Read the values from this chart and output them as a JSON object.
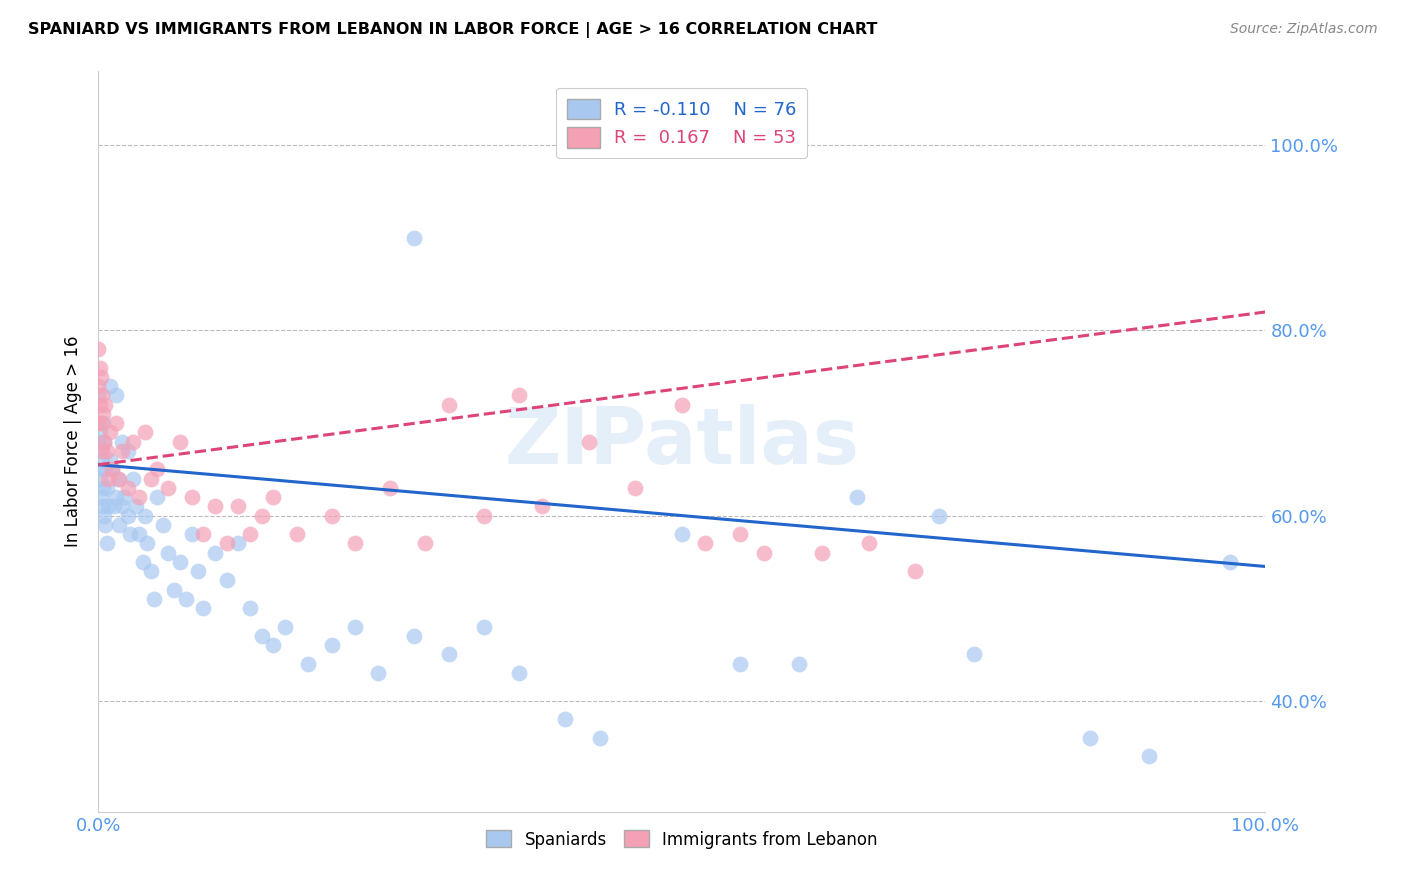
{
  "title": "SPANIARD VS IMMIGRANTS FROM LEBANON IN LABOR FORCE | AGE > 16 CORRELATION CHART",
  "source": "Source: ZipAtlas.com",
  "ylabel": "In Labor Force | Age > 16",
  "ytick_labels": [
    "100.0%",
    "80.0%",
    "60.0%",
    "40.0%"
  ],
  "ytick_values": [
    1.0,
    0.8,
    0.6,
    0.4
  ],
  "xlim": [
    0.0,
    1.0
  ],
  "ylim": [
    0.28,
    1.08
  ],
  "legend_r_blue": "-0.110",
  "legend_n_blue": "76",
  "legend_r_pink": "0.167",
  "legend_n_pink": "53",
  "blue_scatter_color": "#a8c8f0",
  "pink_scatter_color": "#f4a0b5",
  "line_blue_color": "#2266cc",
  "line_pink_color": "#dd4477",
  "axis_label_color": "#5599ee",
  "watermark": "ZIPatlas",
  "blue_line_x0": 0.0,
  "blue_line_y0": 0.655,
  "blue_line_x1": 1.0,
  "blue_line_y1": 0.545,
  "pink_line_x0": 0.0,
  "pink_line_y0": 0.655,
  "pink_line_x1": 1.0,
  "pink_line_y1": 0.82,
  "blue_points_x": [
    0.0,
    0.0,
    0.0,
    0.001,
    0.001,
    0.002,
    0.002,
    0.003,
    0.003,
    0.004,
    0.004,
    0.005,
    0.005,
    0.006,
    0.006,
    0.007,
    0.007,
    0.008,
    0.01,
    0.01,
    0.012,
    0.013,
    0.015,
    0.015,
    0.017,
    0.018,
    0.02,
    0.02,
    0.022,
    0.025,
    0.025,
    0.027,
    0.03,
    0.032,
    0.035,
    0.038,
    0.04,
    0.042,
    0.045,
    0.048,
    0.05,
    0.055,
    0.06,
    0.065,
    0.07,
    0.075,
    0.08,
    0.085,
    0.09,
    0.1,
    0.11,
    0.12,
    0.13,
    0.14,
    0.15,
    0.16,
    0.18,
    0.2,
    0.22,
    0.24,
    0.27,
    0.3,
    0.33,
    0.36,
    0.4,
    0.43,
    0.27,
    0.5,
    0.55,
    0.6,
    0.65,
    0.72,
    0.75,
    0.85,
    0.9,
    0.97
  ],
  "blue_points_y": [
    0.68,
    0.73,
    0.65,
    0.69,
    0.64,
    0.67,
    0.62,
    0.66,
    0.61,
    0.7,
    0.63,
    0.68,
    0.6,
    0.65,
    0.59,
    0.63,
    0.57,
    0.61,
    0.74,
    0.66,
    0.65,
    0.61,
    0.73,
    0.62,
    0.64,
    0.59,
    0.68,
    0.61,
    0.62,
    0.67,
    0.6,
    0.58,
    0.64,
    0.61,
    0.58,
    0.55,
    0.6,
    0.57,
    0.54,
    0.51,
    0.62,
    0.59,
    0.56,
    0.52,
    0.55,
    0.51,
    0.58,
    0.54,
    0.5,
    0.56,
    0.53,
    0.57,
    0.5,
    0.47,
    0.46,
    0.48,
    0.44,
    0.46,
    0.48,
    0.43,
    0.47,
    0.45,
    0.48,
    0.43,
    0.38,
    0.36,
    0.9,
    0.58,
    0.44,
    0.44,
    0.62,
    0.6,
    0.45,
    0.36,
    0.34,
    0.55
  ],
  "pink_points_x": [
    0.0,
    0.0,
    0.0,
    0.001,
    0.001,
    0.002,
    0.002,
    0.003,
    0.003,
    0.004,
    0.005,
    0.006,
    0.007,
    0.008,
    0.01,
    0.012,
    0.015,
    0.018,
    0.02,
    0.025,
    0.03,
    0.035,
    0.04,
    0.045,
    0.05,
    0.06,
    0.07,
    0.08,
    0.09,
    0.1,
    0.11,
    0.12,
    0.13,
    0.14,
    0.15,
    0.17,
    0.2,
    0.22,
    0.25,
    0.28,
    0.3,
    0.33,
    0.36,
    0.38,
    0.42,
    0.46,
    0.5,
    0.52,
    0.55,
    0.57,
    0.62,
    0.66,
    0.7
  ],
  "pink_points_y": [
    0.78,
    0.74,
    0.7,
    0.76,
    0.72,
    0.75,
    0.7,
    0.73,
    0.67,
    0.71,
    0.68,
    0.72,
    0.67,
    0.64,
    0.69,
    0.65,
    0.7,
    0.64,
    0.67,
    0.63,
    0.68,
    0.62,
    0.69,
    0.64,
    0.65,
    0.63,
    0.68,
    0.62,
    0.58,
    0.61,
    0.57,
    0.61,
    0.58,
    0.6,
    0.62,
    0.58,
    0.6,
    0.57,
    0.63,
    0.57,
    0.72,
    0.6,
    0.73,
    0.61,
    0.68,
    0.63,
    0.72,
    0.57,
    0.58,
    0.56,
    0.56,
    0.57,
    0.54
  ]
}
